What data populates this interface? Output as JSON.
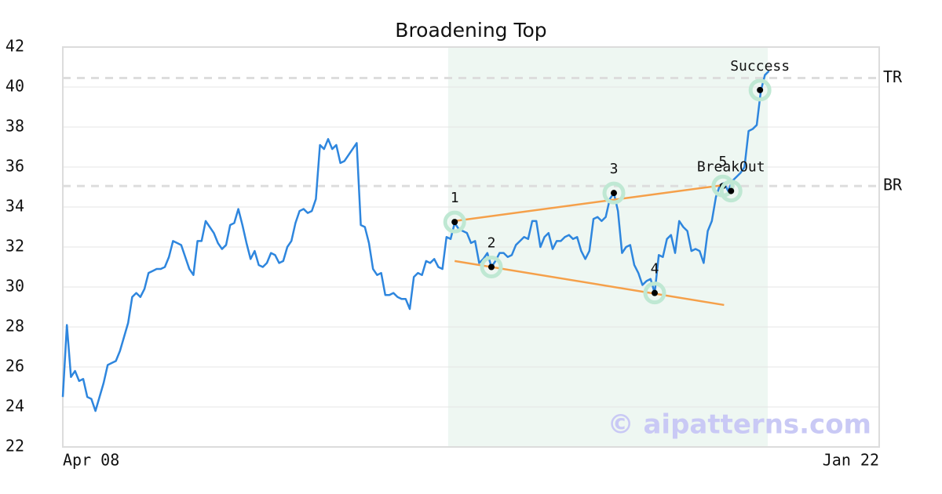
{
  "chart_data": {
    "type": "line",
    "title": "Broadening Top",
    "x": [
      0,
      1,
      2,
      3,
      4,
      5,
      6,
      7,
      8,
      9,
      10,
      11,
      12,
      13,
      14,
      15,
      16,
      17,
      18,
      19,
      20,
      21,
      22,
      23,
      24,
      25,
      26,
      27,
      28,
      29,
      30,
      31,
      32,
      33,
      34,
      35,
      36,
      37,
      38,
      39,
      40,
      41,
      42,
      43,
      44,
      45,
      46,
      47,
      48,
      49,
      50,
      51,
      52,
      53,
      54,
      55,
      56,
      57,
      58,
      59,
      60,
      61,
      62,
      63,
      64,
      65,
      66,
      67,
      68,
      69,
      70,
      71,
      72,
      73,
      74,
      75,
      76,
      77,
      78,
      79,
      80,
      81,
      82,
      83,
      84,
      85,
      86,
      87,
      88,
      89,
      90,
      91,
      92,
      93,
      94,
      95,
      96,
      97,
      98,
      99,
      100,
      101,
      102,
      103,
      104,
      105,
      106,
      107,
      108,
      109,
      110,
      111,
      112,
      113,
      114,
      115,
      116,
      117,
      118,
      119,
      120,
      121,
      122,
      123,
      124,
      125,
      126,
      127,
      128,
      129,
      130,
      131,
      132,
      133,
      134,
      135,
      136,
      137,
      138,
      139,
      140,
      141,
      142,
      143,
      144,
      145,
      146,
      147,
      148,
      149,
      150,
      151,
      152,
      153,
      154,
      155,
      156,
      157,
      158,
      159,
      160,
      161,
      162,
      163,
      164,
      165,
      166,
      167,
      168,
      169,
      170,
      171,
      172,
      173
    ],
    "values": [
      24.5,
      28.1,
      25.5,
      25.8,
      25.3,
      25.4,
      24.5,
      24.4,
      23.8,
      24.5,
      25.2,
      26.1,
      26.2,
      26.3,
      26.8,
      27.5,
      28.2,
      29.5,
      29.7,
      29.5,
      29.9,
      30.7,
      30.8,
      30.9,
      30.9,
      31.0,
      31.5,
      32.3,
      32.2,
      32.1,
      31.5,
      30.9,
      30.6,
      32.3,
      32.3,
      33.3,
      33.0,
      32.7,
      32.2,
      31.9,
      32.1,
      33.1,
      33.2,
      33.9,
      33.1,
      32.2,
      31.4,
      31.8,
      31.1,
      31.0,
      31.2,
      31.7,
      31.6,
      31.2,
      31.3,
      32.0,
      32.3,
      33.2,
      33.8,
      33.9,
      33.7,
      33.8,
      34.4,
      37.1,
      36.9,
      37.4,
      36.9,
      37.1,
      36.2,
      36.3,
      36.6,
      36.9,
      37.2,
      33.1,
      33.0,
      32.2,
      30.9,
      30.6,
      30.7,
      29.6,
      29.6,
      29.7,
      29.5,
      29.4,
      29.4,
      28.9,
      30.5,
      30.7,
      30.6,
      31.3,
      31.2,
      31.4,
      31.0,
      30.9,
      32.5,
      32.4,
      33.2,
      32.9,
      32.8,
      32.7,
      32.2,
      32.3,
      31.2,
      31.4,
      31.7,
      31.0,
      31.3,
      31.7,
      31.7,
      31.5,
      31.6,
      32.1,
      32.3,
      32.5,
      32.4,
      33.3,
      33.3,
      32.0,
      32.5,
      32.7,
      31.9,
      32.3,
      32.3,
      32.5,
      32.6,
      32.4,
      32.5,
      31.8,
      31.4,
      31.8,
      33.4,
      33.5,
      33.3,
      33.5,
      34.4,
      34.7,
      33.8,
      31.7,
      32.0,
      32.1,
      31.1,
      30.7,
      30.1,
      30.3,
      30.4,
      29.7,
      31.6,
      31.5,
      32.4,
      32.6,
      31.7,
      33.3,
      33.0,
      32.8,
      31.8,
      31.9,
      31.8,
      31.2,
      32.8,
      33.3,
      34.5,
      35.1,
      35.2,
      34.8,
      35.3,
      35.5,
      35.7,
      36.0,
      37.8,
      37.9,
      38.1,
      39.8,
      40.6,
      40.8
    ],
    "color": "#2e86de",
    "xlim": [
      0,
      200
    ],
    "xticks": [
      {
        "value": 0,
        "label": "Apr 08"
      },
      {
        "value": 200,
        "label": "Jan 22"
      }
    ],
    "ylim": [
      22,
      42
    ],
    "yticks": [
      22,
      24,
      26,
      28,
      30,
      32,
      34,
      36,
      38,
      40,
      42
    ],
    "grid": true,
    "shaded_range": [
      94.4,
      172.7
    ],
    "shade_color": "#eef7f2",
    "trend_color": "#f5a04a",
    "highlight_color": "#bfe8d3",
    "trendlines": [
      {
        "x": [
          96,
          162
        ],
        "y": [
          33.3,
          35.1
        ]
      },
      {
        "x": [
          96,
          162
        ],
        "y": [
          31.3,
          29.1
        ]
      }
    ],
    "hlines": [
      {
        "label": "TR",
        "value": 40.45
      },
      {
        "label": "BR",
        "value": 35.05
      }
    ],
    "annotations": [
      {
        "label": "1",
        "x": 96,
        "y": 33.25
      },
      {
        "label": "2",
        "x": 105,
        "y": 31.0
      },
      {
        "label": "3",
        "x": 135,
        "y": 34.7
      },
      {
        "label": "4",
        "x": 145,
        "y": 29.7
      },
      {
        "label": "5",
        "x": 161.7,
        "y": 35.05
      },
      {
        "label": "BreakOut",
        "x": 163.7,
        "y": 34.8
      },
      {
        "label": "Success",
        "x": 170.8,
        "y": 39.85
      }
    ],
    "watermark": "© aipatterns.com"
  }
}
